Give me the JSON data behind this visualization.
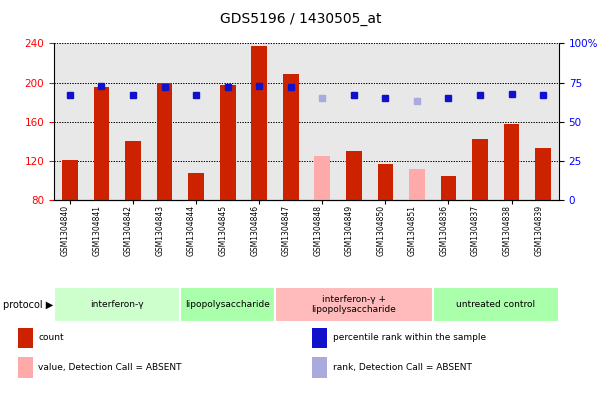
{
  "title": "GDS5196 / 1430505_at",
  "samples": [
    "GSM1304840",
    "GSM1304841",
    "GSM1304842",
    "GSM1304843",
    "GSM1304844",
    "GSM1304845",
    "GSM1304846",
    "GSM1304847",
    "GSM1304848",
    "GSM1304849",
    "GSM1304850",
    "GSM1304851",
    "GSM1304836",
    "GSM1304837",
    "GSM1304838",
    "GSM1304839"
  ],
  "count_values": [
    121,
    195,
    140,
    200,
    108,
    197,
    237,
    209,
    125,
    130,
    117,
    112,
    105,
    143,
    158,
    133
  ],
  "rank_values": [
    67,
    73,
    67,
    72,
    67,
    72,
    73,
    72,
    65,
    67,
    65,
    63,
    65,
    67,
    68,
    67
  ],
  "absent": [
    false,
    false,
    false,
    false,
    false,
    false,
    false,
    false,
    true,
    false,
    false,
    true,
    false,
    false,
    false,
    false
  ],
  "protocols": [
    {
      "label": "interferon-γ",
      "start": 0,
      "end": 4,
      "color": "#ccffcc"
    },
    {
      "label": "lipopolysaccharide",
      "start": 4,
      "end": 7,
      "color": "#aaffaa"
    },
    {
      "label": "interferon-γ +\nlipopolysaccharide",
      "start": 7,
      "end": 12,
      "color": "#ffbbbb"
    },
    {
      "label": "untreated control",
      "start": 12,
      "end": 16,
      "color": "#aaffaa"
    }
  ],
  "ylim_left": [
    80,
    240
  ],
  "ylim_right": [
    0,
    100
  ],
  "yticks_left": [
    80,
    120,
    160,
    200,
    240
  ],
  "yticks_right": [
    0,
    25,
    50,
    75,
    100
  ],
  "bar_color_present": "#cc2200",
  "bar_color_absent": "#ffaaaa",
  "dot_color_present": "#1111cc",
  "dot_color_absent": "#aaaadd",
  "legend_items": [
    {
      "label": "count",
      "color": "#cc2200"
    },
    {
      "label": "percentile rank within the sample",
      "color": "#1111cc"
    },
    {
      "label": "value, Detection Call = ABSENT",
      "color": "#ffaaaa"
    },
    {
      "label": "rank, Detection Call = ABSENT",
      "color": "#aaaadd"
    }
  ],
  "grid_color": "black",
  "grid_linestyle": ":",
  "grid_linewidth": 0.7
}
